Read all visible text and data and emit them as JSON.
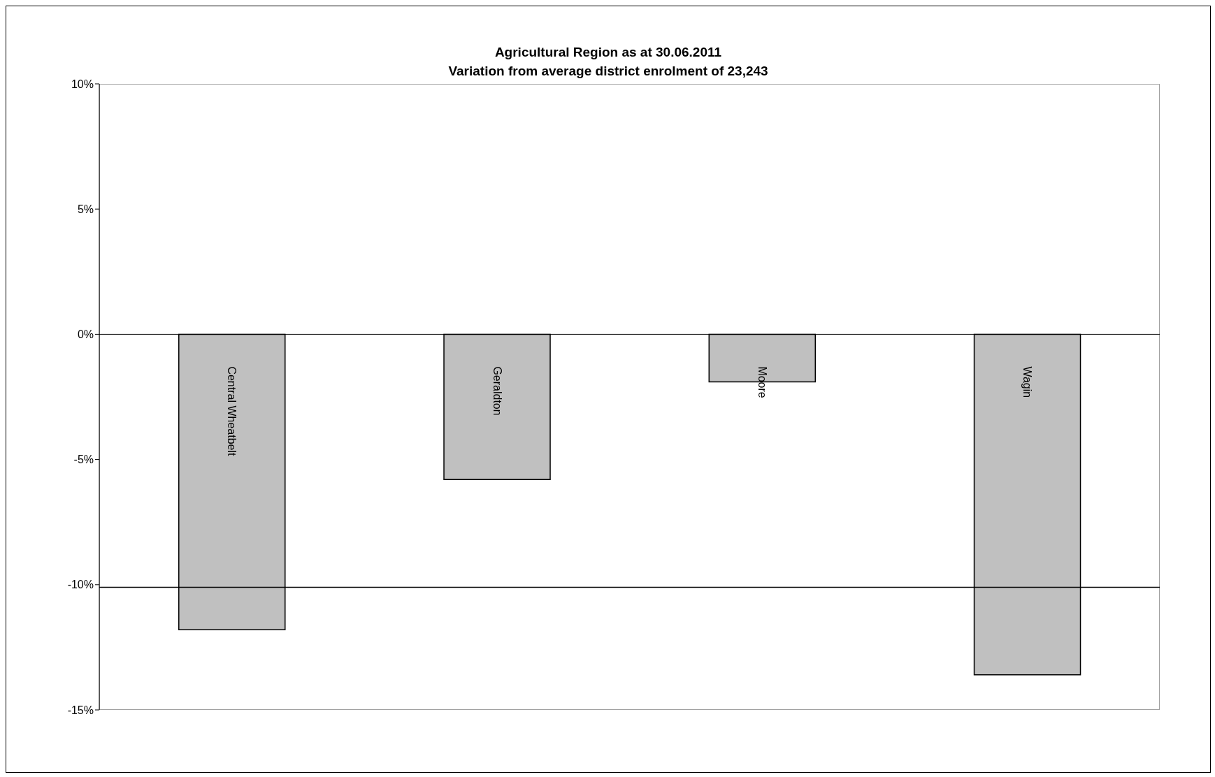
{
  "chart_data": {
    "type": "bar",
    "title": "Agricultural Region as at 30.06.2011",
    "subtitle": "Variation from average district enrolment of 23,243",
    "categories": [
      "Central Wheatbelt",
      "Geraldton",
      "Moore",
      "Wagin"
    ],
    "values": [
      -11.8,
      -5.8,
      -1.9,
      -13.6
    ],
    "color": "#c0c0c0",
    "ylim": [
      -15,
      10
    ],
    "yticks": [
      {
        "value": -15,
        "label": "-15%"
      },
      {
        "value": -10,
        "label": "-10%"
      },
      {
        "value": -5,
        "label": "-5%"
      },
      {
        "value": 0,
        "label": "0%"
      },
      {
        "value": 5,
        "label": "5%"
      },
      {
        "value": 10,
        "label": "10%"
      }
    ],
    "ref_lines": [
      {
        "axis": "y",
        "value": -10.1,
        "color": "#000000"
      }
    ]
  }
}
